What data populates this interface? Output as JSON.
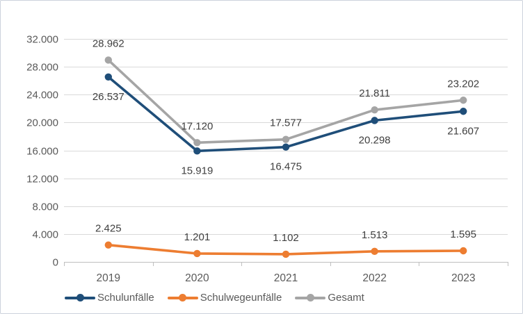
{
  "chart_data": {
    "type": "line",
    "title": "",
    "categories": [
      "2019",
      "2020",
      "2021",
      "2022",
      "2023"
    ],
    "series": [
      {
        "name": "Schulunfälle",
        "color": "#1f4e79",
        "values": [
          26537,
          15919,
          16475,
          20298,
          21607
        ],
        "labels": [
          "26.537",
          "15.919",
          "16.475",
          "20.298",
          "21.607"
        ],
        "label_position": "below"
      },
      {
        "name": "Schulwegeunfälle",
        "color": "#ed7d31",
        "values": [
          2425,
          1201,
          1102,
          1513,
          1595
        ],
        "labels": [
          "2.425",
          "1.201",
          "1.102",
          "1.513",
          "1.595"
        ],
        "label_position": "above"
      },
      {
        "name": "Gesamt",
        "color": "#a5a5a5",
        "values": [
          28962,
          17120,
          17577,
          21811,
          23202
        ],
        "labels": [
          "28.962",
          "17.120",
          "17.577",
          "21.811",
          "23.202"
        ],
        "label_position": "above"
      }
    ],
    "y_axis": {
      "min": 0,
      "max": 32000,
      "step": 4000,
      "tick_labels": [
        "0",
        "4.000",
        "8.000",
        "12.000",
        "16.000",
        "20.000",
        "24.000",
        "28.000",
        "32.000"
      ]
    },
    "x_axis": {
      "tick_labels": [
        "2019",
        "2020",
        "2021",
        "2022",
        "2023"
      ]
    },
    "legend_position": "bottom",
    "grid": true,
    "colors": {
      "gridline": "#d9d9d9",
      "axis_line": "#bfbfbf",
      "axis_text": "#595959",
      "data_label_text": "#3f3f3f",
      "frame_border": "#ccd2dc"
    }
  }
}
